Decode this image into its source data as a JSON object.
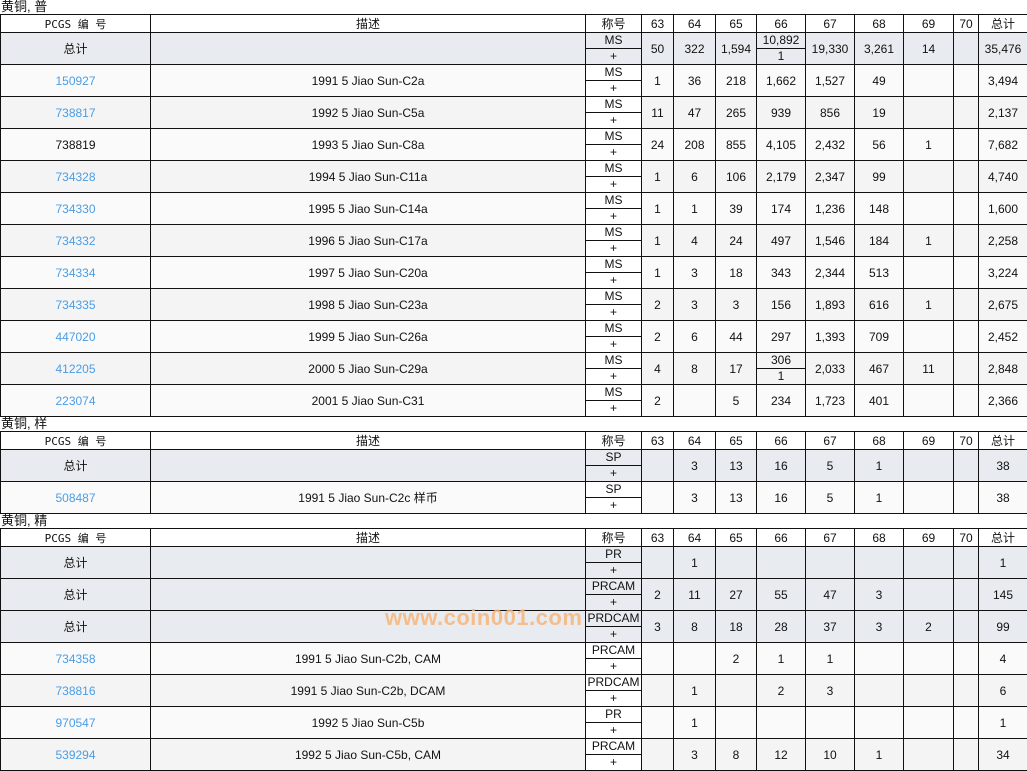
{
  "headers": {
    "pcgs": "PCGS 编 号",
    "desc": "描述",
    "grade": "称号",
    "grades": [
      "63",
      "64",
      "65",
      "66",
      "67",
      "68",
      "69",
      "70"
    ],
    "total": "总计"
  },
  "sections": [
    {
      "title": "黄铜, 普",
      "rows": [
        {
          "id": "总计",
          "total": true,
          "desc": "",
          "grade": "MS",
          "plus": "+",
          "vals": [
            "50",
            "322",
            "1,594",
            [
              "10,892",
              "1"
            ],
            "19,330",
            "3,261",
            "14",
            ""
          ],
          "sum": "35,476"
        },
        {
          "id": "150927",
          "link": true,
          "desc": "1991 5 Jiao Sun-C2a",
          "grade": "MS",
          "plus": "+",
          "vals": [
            "1",
            "36",
            "218",
            "1,662",
            "1,527",
            "49",
            "",
            ""
          ],
          "sum": "3,494"
        },
        {
          "id": "738817",
          "link": true,
          "desc": "1992 5 Jiao Sun-C5a",
          "grade": "MS",
          "plus": "+",
          "vals": [
            "11",
            "47",
            "265",
            "939",
            "856",
            "19",
            "",
            ""
          ],
          "sum": "2,137"
        },
        {
          "id": "738819",
          "link": false,
          "desc": "1993 5 Jiao Sun-C8a",
          "grade": "MS",
          "plus": "+",
          "vals": [
            "24",
            "208",
            "855",
            "4,105",
            "2,432",
            "56",
            "1",
            ""
          ],
          "sum": "7,682"
        },
        {
          "id": "734328",
          "link": true,
          "desc": "1994 5 Jiao Sun-C11a",
          "grade": "MS",
          "plus": "+",
          "vals": [
            "1",
            "6",
            "106",
            "2,179",
            "2,347",
            "99",
            "",
            ""
          ],
          "sum": "4,740"
        },
        {
          "id": "734330",
          "link": true,
          "desc": "1995 5 Jiao Sun-C14a",
          "grade": "MS",
          "plus": "+",
          "vals": [
            "1",
            "1",
            "39",
            "174",
            "1,236",
            "148",
            "",
            ""
          ],
          "sum": "1,600"
        },
        {
          "id": "734332",
          "link": true,
          "desc": "1996 5 Jiao Sun-C17a",
          "grade": "MS",
          "plus": "+",
          "vals": [
            "1",
            "4",
            "24",
            "497",
            "1,546",
            "184",
            "1",
            ""
          ],
          "sum": "2,258"
        },
        {
          "id": "734334",
          "link": true,
          "desc": "1997 5 Jiao Sun-C20a",
          "grade": "MS",
          "plus": "+",
          "vals": [
            "1",
            "3",
            "18",
            "343",
            "2,344",
            "513",
            "",
            ""
          ],
          "sum": "3,224"
        },
        {
          "id": "734335",
          "link": true,
          "desc": "1998 5 Jiao Sun-C23a",
          "grade": "MS",
          "plus": "+",
          "vals": [
            "2",
            "3",
            "3",
            "156",
            "1,893",
            "616",
            "1",
            ""
          ],
          "sum": "2,675"
        },
        {
          "id": "447020",
          "link": true,
          "desc": "1999 5 Jiao Sun-C26a",
          "grade": "MS",
          "plus": "+",
          "vals": [
            "2",
            "6",
            "44",
            "297",
            "1,393",
            "709",
            "",
            ""
          ],
          "sum": "2,452"
        },
        {
          "id": "412205",
          "link": true,
          "desc": "2000 5 Jiao Sun-C29a",
          "grade": "MS",
          "plus": "+",
          "vals": [
            "4",
            "8",
            "17",
            [
              "306",
              "1"
            ],
            "2,033",
            "467",
            "11",
            ""
          ],
          "sum": "2,848"
        },
        {
          "id": "223074",
          "link": true,
          "desc": "2001 5 Jiao Sun-C31",
          "grade": "MS",
          "plus": "+",
          "vals": [
            "2",
            "",
            "5",
            "234",
            "1,723",
            "401",
            "",
            ""
          ],
          "sum": "2,366"
        }
      ]
    },
    {
      "title": "黄铜, 样",
      "rows": [
        {
          "id": "总计",
          "total": true,
          "desc": "",
          "grade": "SP",
          "plus": "+",
          "vals": [
            "",
            "3",
            "13",
            "16",
            "5",
            "1",
            "",
            ""
          ],
          "sum": "38"
        },
        {
          "id": "508487",
          "link": true,
          "desc": "1991 5 Jiao Sun-C2c 样币",
          "grade": "SP",
          "plus": "+",
          "vals": [
            "",
            "3",
            "13",
            "16",
            "5",
            "1",
            "",
            ""
          ],
          "sum": "38"
        }
      ]
    },
    {
      "title": "黄铜, 精",
      "rows": [
        {
          "id": "总计",
          "total": true,
          "desc": "",
          "grade": "PR",
          "plus": "+",
          "vals": [
            "",
            "1",
            "",
            "",
            "",
            "",
            "",
            ""
          ],
          "sum": "1"
        },
        {
          "id": "总计",
          "total": true,
          "desc": "",
          "grade": "PRCAM",
          "plus": "+",
          "vals": [
            "2",
            "11",
            "27",
            "55",
            "47",
            "3",
            "",
            ""
          ],
          "sum": "145"
        },
        {
          "id": "总计",
          "total": true,
          "desc": "",
          "grade": "PRDCAM",
          "plus": "+",
          "vals": [
            "3",
            "8",
            "18",
            "28",
            "37",
            "3",
            "2",
            ""
          ],
          "sum": "99"
        },
        {
          "id": "734358",
          "link": true,
          "desc": "1991 5 Jiao Sun-C2b, CAM",
          "grade": "PRCAM",
          "plus": "+",
          "vals": [
            "",
            "",
            "2",
            "1",
            "1",
            "",
            "",
            ""
          ],
          "sum": "4"
        },
        {
          "id": "738816",
          "link": true,
          "desc": "1991 5 Jiao Sun-C2b, DCAM",
          "grade": "PRDCAM",
          "plus": "+",
          "vals": [
            "",
            "1",
            "",
            "2",
            "3",
            "",
            "",
            ""
          ],
          "sum": "6"
        },
        {
          "id": "970547",
          "link": true,
          "desc": "1992 5 Jiao Sun-C5b",
          "grade": "PR",
          "plus": "+",
          "vals": [
            "",
            "1",
            "",
            "",
            "",
            "",
            "",
            ""
          ],
          "sum": "1"
        },
        {
          "id": "539294",
          "link": true,
          "desc": "1992 5 Jiao Sun-C5b, CAM",
          "grade": "PRCAM",
          "plus": "+",
          "vals": [
            "",
            "3",
            "8",
            "12",
            "10",
            "1",
            "",
            ""
          ],
          "sum": "34"
        }
      ]
    }
  ],
  "watermark": "www.coin001.com",
  "colors": {
    "link": "#4a9de6",
    "total_row": "#e8ecf0",
    "watermark": "#f7b57a"
  }
}
